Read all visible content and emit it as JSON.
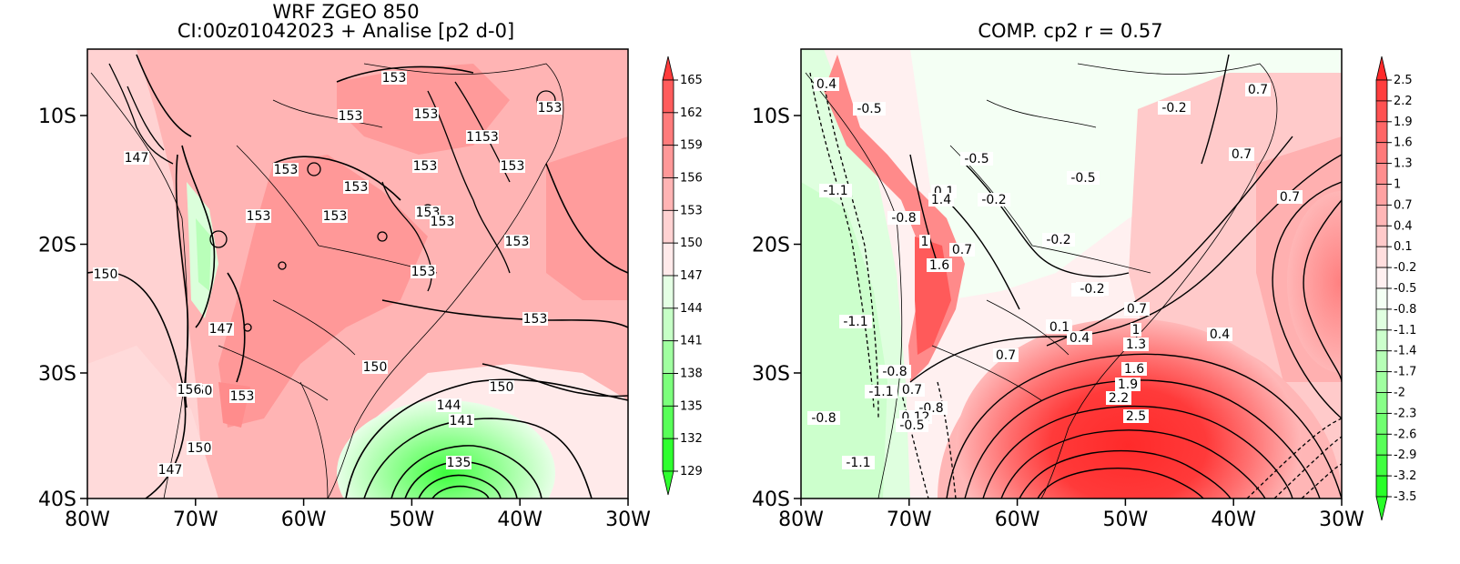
{
  "left_panel": {
    "title_line1": "WRF ZGEO 850",
    "title_line2": "CI:00z01042023 + Analise  [p2 d-0]",
    "lon_ticks": [
      "80W",
      "70W",
      "60W",
      "50W",
      "40W",
      "30W"
    ],
    "lat_ticks": [
      "10S",
      "20S",
      "30S",
      "40S"
    ],
    "colorbar": {
      "levels": [
        "165",
        "162",
        "159",
        "156",
        "153",
        "150",
        "147",
        "144",
        "141",
        "138",
        "135",
        "132",
        "129"
      ],
      "colors": [
        "#ff3b3b",
        "#ff5c5c",
        "#ff7b7b",
        "#ff9898",
        "#ffb4b4",
        "#ffd2d2",
        "#ffeaea",
        "#e4ffe4",
        "#c6ffc6",
        "#a0ffa0",
        "#7cff7c",
        "#58ff58",
        "#2fff2f"
      ]
    },
    "contour_labels": [
      "153",
      "153",
      "153",
      "153",
      "153",
      "153",
      "1153",
      "153",
      "153",
      "153",
      "153",
      "153",
      "153",
      "153",
      "153",
      "150",
      "147",
      "150",
      "147",
      "153",
      "150",
      "156",
      "150",
      "153",
      "150",
      "147",
      "144",
      "141",
      "135"
    ]
  },
  "right_panel": {
    "title": "COMP. cp2  r =  0.57",
    "lon_ticks": [
      "80W",
      "70W",
      "60W",
      "50W",
      "40W",
      "30W"
    ],
    "lat_ticks": [
      "10S",
      "20S",
      "30S",
      "40S"
    ],
    "colorbar": {
      "levels": [
        "2.5",
        "2.2",
        "1.9",
        "1.6",
        "1.3",
        "1",
        "0.7",
        "0.4",
        "0.1",
        "-0.2",
        "-0.5",
        "-0.8",
        "-1.1",
        "-1.4",
        "-1.7",
        "-2",
        "-2.3",
        "-2.6",
        "-2.9",
        "-3.2",
        "-3.5"
      ],
      "colors": [
        "#ff2a2a",
        "#ff3e3e",
        "#ff5252",
        "#ff6666",
        "#ff7a7a",
        "#ff8e8e",
        "#ffa2a2",
        "#ffb6b6",
        "#ffcaca",
        "#ffdede",
        "#fff0f0",
        "#f4fff4",
        "#e0ffe0",
        "#ccffcc",
        "#b6ffb6",
        "#a0ffa0",
        "#88ff88",
        "#70ff70",
        "#58ff58",
        "#40ff40",
        "#28ff28"
      ]
    },
    "contour_labels": [
      "0.4",
      "-0.5",
      "-0.2",
      "0.7",
      "0.7",
      "-1.1",
      "-0.5",
      "0.1",
      "1.4",
      "-0.2",
      "-0.5",
      "-0.2",
      "0.1",
      "0.4",
      "0.7",
      "-0.8",
      "1",
      "0.7",
      "1.6",
      "-0.5",
      "-0.2",
      "-1.1",
      "0.1",
      "0.4",
      "0.7",
      "1",
      "1.3",
      "0.4",
      "0.7",
      "-0.8",
      "1.6",
      "-1.1",
      "0.7",
      "1.9",
      "-0.8",
      "2.2",
      "0.12",
      "2.5",
      "-0.8",
      "-0.5",
      "-1.1"
    ]
  }
}
